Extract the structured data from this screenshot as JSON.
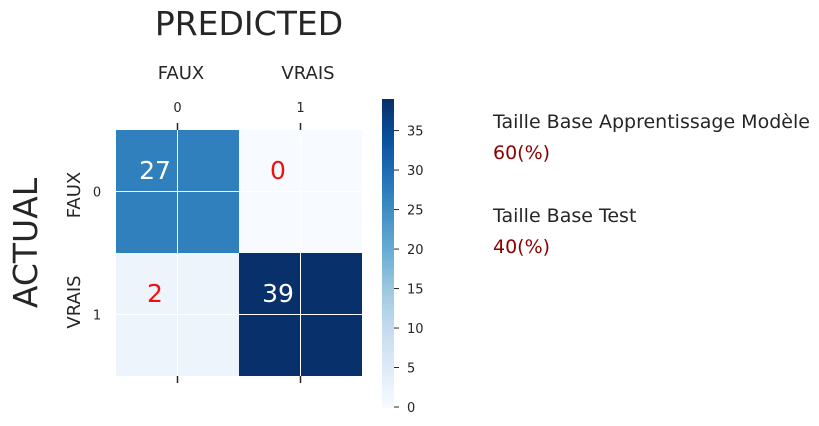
{
  "chart_data": {
    "type": "heatmap",
    "title": "PREDICTED",
    "ylabel": "ACTUAL",
    "x_categories": [
      "FAUX",
      "VRAIS"
    ],
    "y_categories": [
      "FAUX",
      "VRAIS"
    ],
    "x_ticks": [
      "0",
      "1"
    ],
    "y_ticks": [
      "0",
      "1"
    ],
    "matrix": [
      [
        27,
        0
      ],
      [
        2,
        39
      ]
    ],
    "colormap": "Blues",
    "colorbar": {
      "range": [
        0,
        39
      ],
      "ticks": [
        0,
        5,
        10,
        15,
        20,
        25,
        30,
        35
      ]
    },
    "grid": true
  },
  "info": {
    "train_label": "Taille Base Apprentissage Modèle",
    "train_value": "60(%)",
    "test_label": "Taille Base Test",
    "test_value": "40(%)"
  },
  "colors": {
    "dark_text": "#ffffff",
    "light_text": "#ee1111",
    "value_color": "#8b0000"
  }
}
